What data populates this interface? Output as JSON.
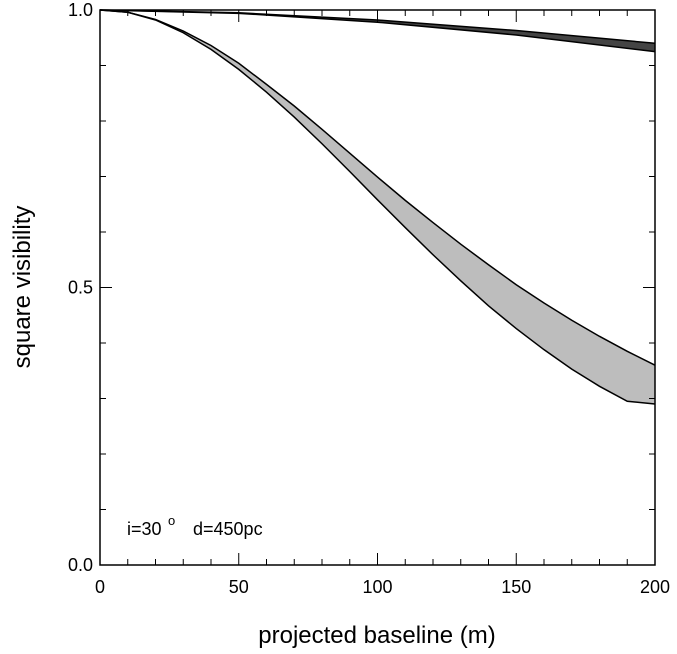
{
  "chart_data": {
    "type": "area",
    "title": "",
    "xlabel": "projected baseline (m)",
    "ylabel": "square visibility",
    "xlim": [
      0,
      200
    ],
    "ylim": [
      0.0,
      1.0
    ],
    "x_ticks": [
      0,
      50,
      100,
      150,
      200
    ],
    "x_tick_labels": [
      "0",
      "50",
      "100",
      "150",
      "200"
    ],
    "y_ticks": [
      0.0,
      0.5,
      1.0
    ],
    "y_tick_labels": [
      "0.0",
      "0.5",
      "1.0"
    ],
    "grid": false,
    "annotation": {
      "i_text": "i=30",
      "superscript": "o",
      "d_text": "d=450pc"
    },
    "bands": [
      {
        "fill": "#bdbdbd",
        "x": [
          0,
          10,
          20,
          30,
          40,
          50,
          60,
          70,
          80,
          90,
          100,
          110,
          120,
          130,
          140,
          150,
          160,
          170,
          180,
          190,
          200
        ],
        "upper": [
          1.0,
          0.996,
          0.983,
          0.962,
          0.936,
          0.904,
          0.866,
          0.827,
          0.785,
          0.742,
          0.699,
          0.657,
          0.617,
          0.578,
          0.541,
          0.505,
          0.472,
          0.441,
          0.412,
          0.385,
          0.36
        ],
        "lower": [
          1.0,
          0.996,
          0.982,
          0.959,
          0.929,
          0.893,
          0.852,
          0.807,
          0.759,
          0.709,
          0.658,
          0.608,
          0.559,
          0.512,
          0.467,
          0.426,
          0.388,
          0.353,
          0.322,
          0.295,
          0.29
        ]
      },
      {
        "fill": "#444444",
        "x": [
          0,
          50,
          100,
          150,
          200
        ],
        "upper": [
          1.0,
          0.995,
          0.982,
          0.963,
          0.94
        ],
        "lower": [
          1.0,
          0.994,
          0.978,
          0.955,
          0.925
        ]
      }
    ]
  }
}
